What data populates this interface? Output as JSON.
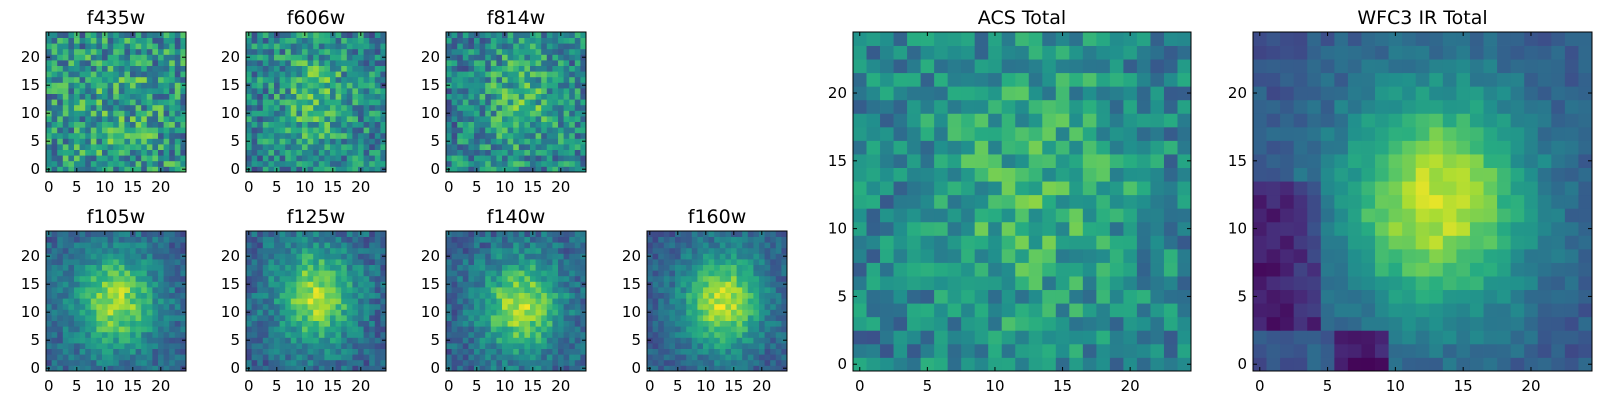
{
  "chart_data": [
    {
      "type": "heatmap",
      "title": "f435w",
      "x_ticks": [
        0,
        5,
        10,
        15,
        20
      ],
      "y_ticks": [
        0,
        5,
        10,
        15,
        20
      ],
      "xlim": [
        0,
        25
      ],
      "ylim": [
        0,
        25
      ],
      "colormap": "viridis"
    },
    {
      "type": "heatmap",
      "title": "f606w",
      "x_ticks": [
        0,
        5,
        10,
        15,
        20
      ],
      "y_ticks": [
        0,
        5,
        10,
        15,
        20
      ],
      "xlim": [
        0,
        25
      ],
      "ylim": [
        0,
        25
      ],
      "colormap": "viridis"
    },
    {
      "type": "heatmap",
      "title": "f814w",
      "x_ticks": [
        0,
        5,
        10,
        15,
        20
      ],
      "y_ticks": [
        0,
        5,
        10,
        15,
        20
      ],
      "xlim": [
        0,
        25
      ],
      "ylim": [
        0,
        25
      ],
      "colormap": "viridis"
    },
    {
      "type": "heatmap",
      "title": "f105w",
      "x_ticks": [
        0,
        5,
        10,
        15,
        20
      ],
      "y_ticks": [
        0,
        5,
        10,
        15,
        20
      ],
      "xlim": [
        0,
        25
      ],
      "ylim": [
        0,
        25
      ],
      "colormap": "viridis"
    },
    {
      "type": "heatmap",
      "title": "f125w",
      "x_ticks": [
        0,
        5,
        10,
        15,
        20
      ],
      "y_ticks": [
        0,
        5,
        10,
        15,
        20
      ],
      "xlim": [
        0,
        25
      ],
      "ylim": [
        0,
        25
      ],
      "colormap": "viridis"
    },
    {
      "type": "heatmap",
      "title": "f140w",
      "x_ticks": [
        0,
        5,
        10,
        15,
        20
      ],
      "y_ticks": [
        0,
        5,
        10,
        15,
        20
      ],
      "xlim": [
        0,
        25
      ],
      "ylim": [
        0,
        25
      ],
      "colormap": "viridis"
    },
    {
      "type": "heatmap",
      "title": "f160w",
      "x_ticks": [
        0,
        5,
        10,
        15,
        20
      ],
      "y_ticks": [
        0,
        5,
        10,
        15,
        20
      ],
      "xlim": [
        0,
        25
      ],
      "ylim": [
        0,
        25
      ],
      "colormap": "viridis"
    },
    {
      "type": "heatmap",
      "title": "ACS Total",
      "x_ticks": [
        0,
        5,
        10,
        15,
        20
      ],
      "y_ticks": [
        0,
        5,
        10,
        15,
        20
      ],
      "xlim": [
        0,
        25
      ],
      "ylim": [
        0,
        25
      ],
      "colormap": "viridis"
    },
    {
      "type": "heatmap",
      "title": "WFC3 IR Total",
      "x_ticks": [
        0,
        5,
        10,
        15,
        20
      ],
      "y_ticks": [
        0,
        5,
        10,
        15,
        20
      ],
      "xlim": [
        0,
        25
      ],
      "ylim": [
        0,
        25
      ],
      "colormap": "viridis"
    }
  ]
}
